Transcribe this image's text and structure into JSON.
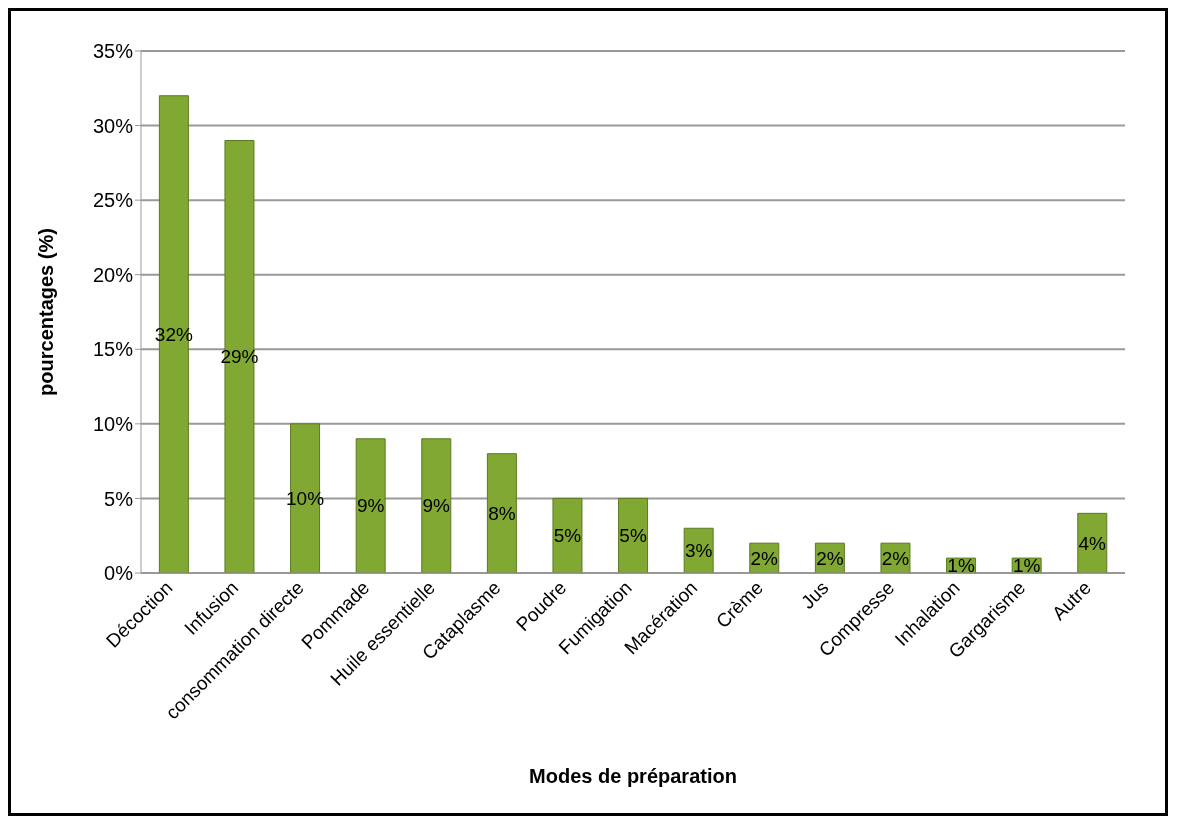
{
  "chart_data": {
    "type": "bar",
    "xlabel": "Modes de préparation",
    "ylabel": "pourcentages (%)",
    "categories": [
      "Décoction",
      "Infusion",
      "consommation directe",
      "Pommade",
      "Huile essentielle",
      "Cataplasme",
      "Poudre",
      "Fumigation",
      "Macération",
      "Crème",
      "Jus",
      "Compresse",
      "Inhalation",
      "Gargarisme",
      "Autre"
    ],
    "values": [
      32,
      29,
      10,
      9,
      9,
      8,
      5,
      5,
      3,
      2,
      2,
      2,
      1,
      1,
      4
    ],
    "value_labels": [
      "32%",
      "29%",
      "10%",
      "9%",
      "9%",
      "8%",
      "5%",
      "5%",
      "3%",
      "2%",
      "2%",
      "2%",
      "1%",
      "1%",
      "4%"
    ],
    "color": "#80a832",
    "ylim": [
      0,
      35
    ],
    "yticks": [
      {
        "value": 0,
        "label": "0%"
      },
      {
        "value": 5,
        "label": "5%"
      },
      {
        "value": 10,
        "label": "10%"
      },
      {
        "value": 15,
        "label": "15%"
      },
      {
        "value": 20,
        "label": "20%"
      },
      {
        "value": 25,
        "label": "25%"
      },
      {
        "value": 30,
        "label": "30%"
      },
      {
        "value": 35,
        "label": "35%"
      }
    ],
    "grid": "y",
    "legend": false
  }
}
